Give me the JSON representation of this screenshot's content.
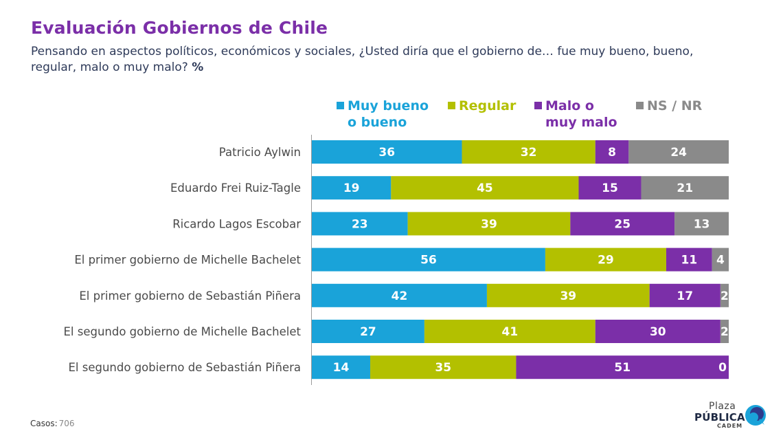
{
  "title": "Evaluación Gobiernos de Chile",
  "subtitle": "Pensando en aspectos políticos, económicos y sociales, ¿Usted diría que el gobierno de… fue muy bueno, bueno, regular, malo o muy malo?",
  "subtitle_unit": "%",
  "legend": [
    {
      "label": "Muy bueno o bueno",
      "color": "#1aa3d9"
    },
    {
      "label": "Regular",
      "color": "#b3c000"
    },
    {
      "label": "Malo o muy malo",
      "color": "#7b2fa8"
    },
    {
      "label": "NS / NR",
      "color": "#8a8a8a"
    }
  ],
  "footer": {
    "cases_label": "Casos:",
    "cases_value": "706"
  },
  "logo": {
    "top": "Plaza",
    "middle": "PÚBLICA",
    "bottom": "CADEM"
  },
  "chart_data": {
    "type": "bar",
    "orientation": "horizontal",
    "stacked": true,
    "categories": [
      "Patricio Aylwin",
      "Eduardo Frei Ruiz-Tagle",
      "Ricardo Lagos Escobar",
      "El primer gobierno de Michelle Bachelet",
      "El primer gobierno de Sebastián Piñera",
      "El segundo gobierno de Michelle Bachelet",
      "El segundo gobierno de Sebastián Piñera"
    ],
    "series": [
      {
        "name": "Muy bueno o bueno",
        "color": "#1aa3d9",
        "values": [
          36,
          19,
          23,
          56,
          42,
          27,
          14
        ]
      },
      {
        "name": "Regular",
        "color": "#b3c000",
        "values": [
          32,
          45,
          39,
          29,
          39,
          41,
          35
        ]
      },
      {
        "name": "Malo o muy malo",
        "color": "#7b2fa8",
        "values": [
          8,
          15,
          25,
          11,
          17,
          30,
          51
        ]
      },
      {
        "name": "NS / NR",
        "color": "#8a8a8a",
        "values": [
          24,
          21,
          13,
          4,
          2,
          2,
          0
        ]
      }
    ],
    "xlim": [
      0,
      100
    ],
    "legend_position": "top",
    "grid": false
  }
}
